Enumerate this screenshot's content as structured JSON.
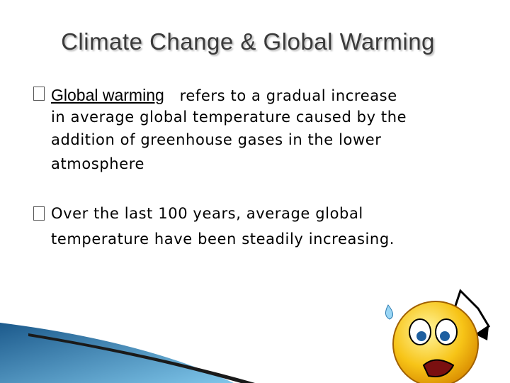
{
  "title": "Climate Change & Global Warming",
  "bullets": [
    {
      "term": "Global warming",
      "lines": [
        "refers to a gradual increase",
        "in average global temperature caused by the",
        "addition of greenhouse gases in the lower",
        "atmosphere"
      ]
    },
    {
      "lines": [
        "Over the last 100 years, average global",
        "temperature have been steadily increasing."
      ]
    }
  ]
}
